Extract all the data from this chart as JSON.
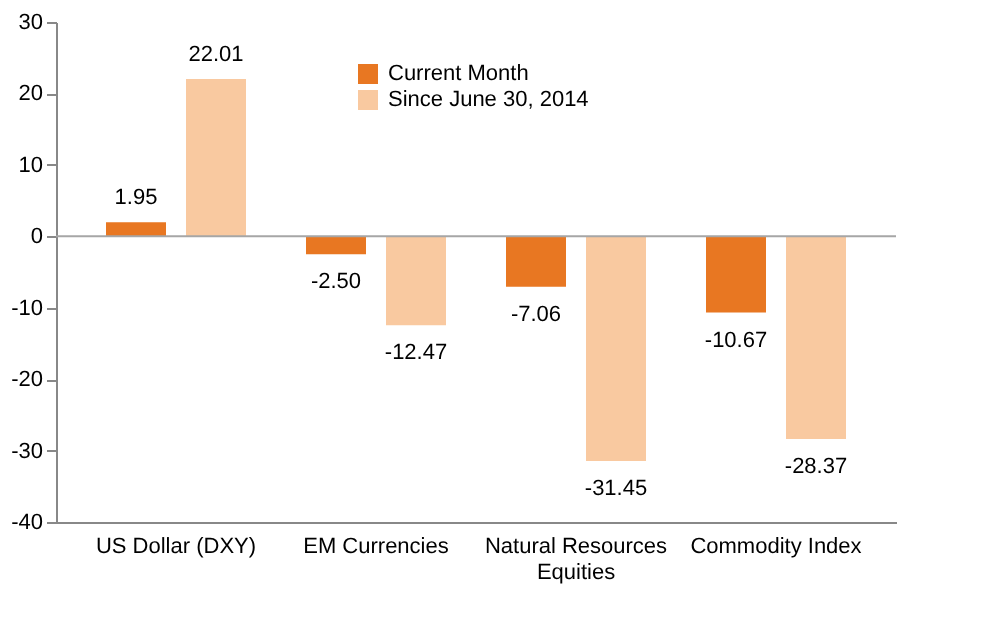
{
  "chart_data": {
    "type": "bar",
    "categories": [
      "US Dollar (DXY)",
      "EM Currencies",
      "Natural Resources Equities",
      "Commodity Index"
    ],
    "series": [
      {
        "name": "Current Month",
        "color": "#e87722",
        "values": [
          1.95,
          -2.5,
          -7.06,
          -10.67
        ],
        "value_labels": [
          "1.95",
          "-2.50",
          "-7.06",
          "-10.67"
        ]
      },
      {
        "name": "Since June 30, 2014",
        "color": "#f9c9a0",
        "values": [
          22.01,
          -12.47,
          -31.45,
          -28.37
        ],
        "value_labels": [
          "22.01",
          "-12.47",
          "-31.45",
          "-28.37"
        ]
      }
    ],
    "ylim": [
      -40,
      30
    ],
    "yticks": [
      -40,
      -30,
      -20,
      -10,
      0,
      10,
      20,
      30
    ],
    "grid": false,
    "legend": "top",
    "ref_lines": [
      {
        "axis": "y",
        "value": 0,
        "color": "#a6a6a6"
      }
    ]
  }
}
